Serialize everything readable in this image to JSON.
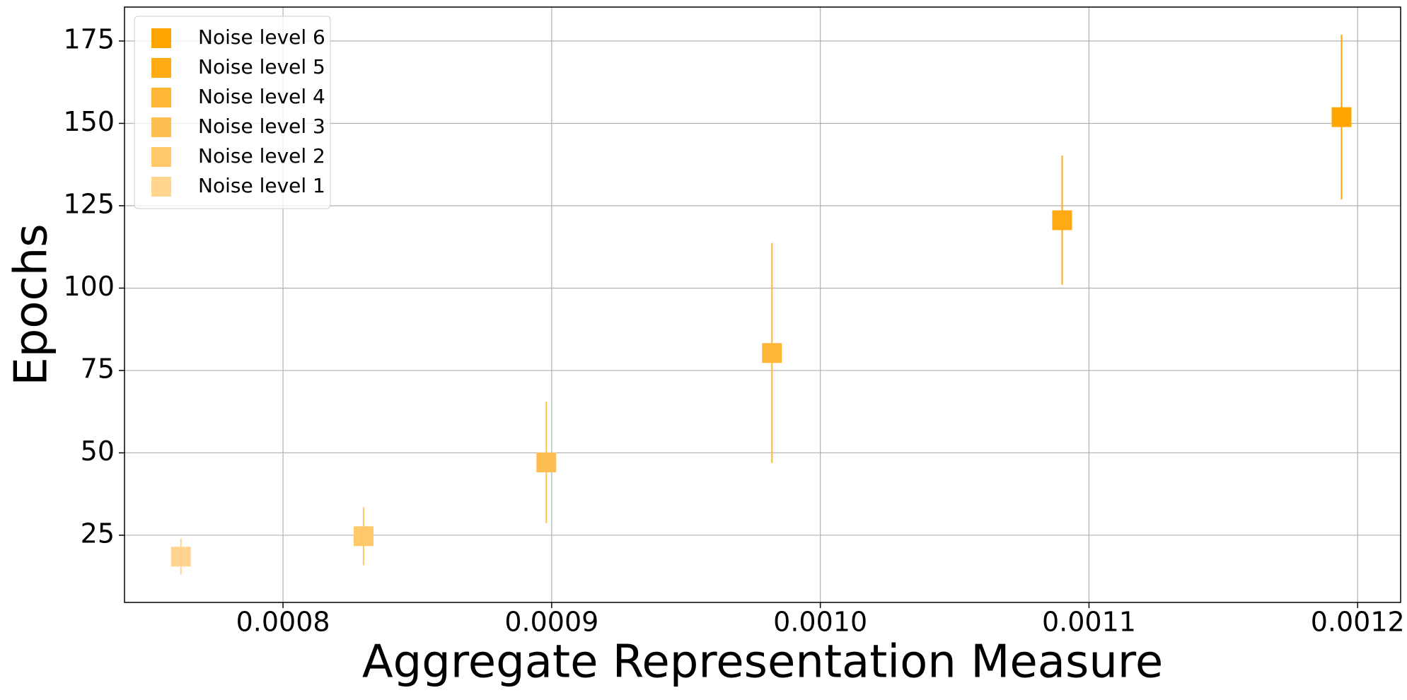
{
  "chart_data": {
    "type": "scatter",
    "x_label": "Aggregate Representation Measure",
    "y_label": "Epochs",
    "xlim": [
      0.000741,
      0.001216
    ],
    "ylim": [
      4.6,
      185.3
    ],
    "xticks": [
      0.0008,
      0.0009,
      {
        "value": 0.001,
        "label": "0.0010"
      },
      0.0011,
      0.0012
    ],
    "yticks": [
      25,
      50,
      75,
      100,
      125,
      150,
      175
    ],
    "grid": true,
    "legend": "upper left",
    "series": [
      {
        "name": "Noise level 6",
        "color": "#ffa500",
        "x": [
          0.001194
        ],
        "values": [
          151.9
        ],
        "errors": [
          25
        ]
      },
      {
        "name": "Noise level 5",
        "color": "#ffaa14",
        "x": [
          0.00109
        ],
        "values": [
          120.6
        ],
        "errors": [
          19.6
        ]
      },
      {
        "name": "Noise level 4",
        "color": "#ffb535",
        "x": [
          0.000982
        ],
        "values": [
          80.3
        ],
        "errors": [
          33.4
        ]
      },
      {
        "name": "Noise level 3",
        "color": "#ffbf50",
        "x": [
          0.000898
        ],
        "values": [
          47.1
        ],
        "errors": [
          18.4
        ]
      },
      {
        "name": "Noise level 2",
        "color": "#ffc96b",
        "x": [
          0.00083
        ],
        "values": [
          24.7
        ],
        "errors": [
          8.8
        ]
      },
      {
        "name": "Noise level 1",
        "color": "#ffd590",
        "x": [
          0.000762
        ],
        "values": [
          18.5
        ],
        "errors": [
          5.5
        ]
      }
    ]
  }
}
